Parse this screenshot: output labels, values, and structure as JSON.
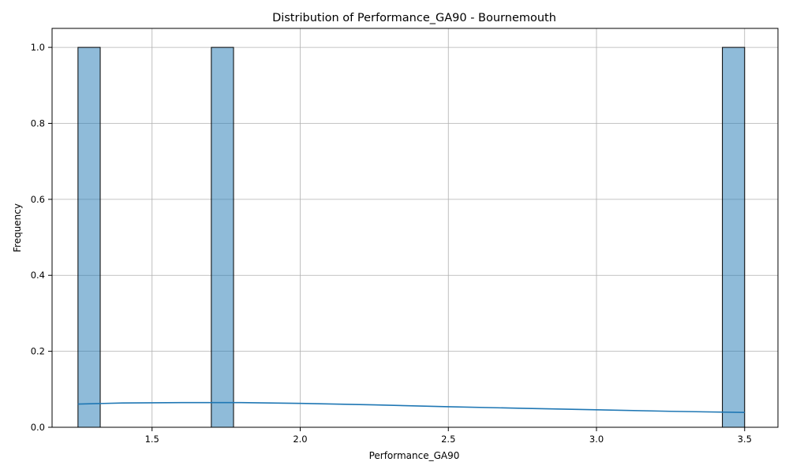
{
  "chart_data": {
    "type": "bar",
    "subtype": "histogram-with-kde",
    "title": "Distribution of Performance_GA90 - Bournemouth",
    "xlabel": "Performance_GA90",
    "ylabel": "Frequency",
    "xlim": [
      1.1625,
      3.6125
    ],
    "ylim": [
      0,
      1.05
    ],
    "xticks": [
      1.5,
      2.0,
      2.5,
      3.0,
      3.5
    ],
    "yticks": [
      0.0,
      0.2,
      0.4,
      0.6,
      0.8,
      1.0
    ],
    "xtick_labels": [
      "1.5",
      "2.0",
      "2.5",
      "3.0",
      "3.5"
    ],
    "ytick_labels": [
      "0.0",
      "0.2",
      "0.4",
      "0.6",
      "0.8",
      "1.0"
    ],
    "grid": true,
    "bars": [
      {
        "x0": 1.25,
        "x1": 1.325,
        "value": 1
      },
      {
        "x0": 1.7,
        "x1": 1.775,
        "value": 1
      },
      {
        "x0": 3.425,
        "x1": 3.5,
        "value": 1
      }
    ],
    "kde": {
      "x": [
        1.25,
        1.4,
        1.6,
        1.8,
        2.0,
        2.25,
        2.5,
        2.75,
        3.0,
        3.25,
        3.5
      ],
      "y": [
        0.061,
        0.064,
        0.065,
        0.065,
        0.063,
        0.059,
        0.054,
        0.05,
        0.046,
        0.042,
        0.039
      ]
    },
    "colors": {
      "bar_fill": "#1f77b4",
      "bar_edge": "#000000",
      "kde_line": "#1f77b4",
      "grid": "#b0b0b0"
    }
  }
}
